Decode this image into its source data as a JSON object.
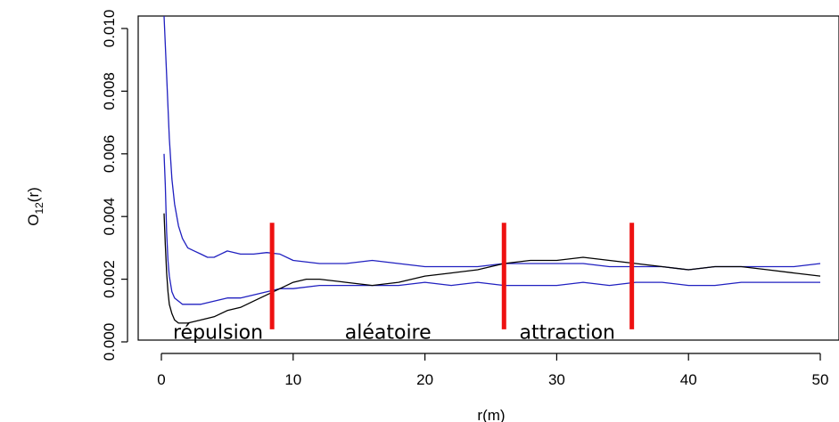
{
  "chart_data": {
    "type": "line",
    "title": "",
    "xlabel": "r(m)",
    "ylabel_main": "O",
    "ylabel_sub": "12",
    "ylabel_tail": "(r)",
    "xlim": [
      0,
      50
    ],
    "ylim": [
      0,
      0.01
    ],
    "xticks": [
      0,
      10,
      20,
      30,
      40,
      50
    ],
    "xtick_labels": [
      "0",
      "10",
      "20",
      "30",
      "40",
      "50"
    ],
    "yticks": [
      0.0,
      0.002,
      0.004,
      0.006,
      0.008,
      0.01
    ],
    "ytick_labels": [
      "0.000",
      "0.002",
      "0.004",
      "0.006",
      "0.008",
      "0.010"
    ],
    "grid": false,
    "series": [
      {
        "color": "#2020c0",
        "x": [
          0.2,
          0.4,
          0.6,
          0.8,
          1.0,
          1.3,
          1.6,
          2.0,
          2.5,
          3.0,
          3.5,
          4.0,
          4.5,
          5.0,
          6.0,
          7.0,
          8.0,
          9.0,
          10.0,
          12.0,
          14.0,
          16.0,
          18.0,
          20.0,
          22.0,
          24.0,
          26.0,
          28.0,
          30.0,
          32.0,
          34.0,
          36.0,
          38.0,
          40.0,
          42.0,
          44.0,
          46.0,
          48.0,
          50.0
        ],
        "y": [
          0.0105,
          0.0085,
          0.0065,
          0.0052,
          0.0044,
          0.0037,
          0.0033,
          0.003,
          0.0029,
          0.0028,
          0.0027,
          0.0027,
          0.0028,
          0.0029,
          0.0028,
          0.0028,
          0.00285,
          0.0028,
          0.0026,
          0.0025,
          0.0025,
          0.0026,
          0.0025,
          0.0024,
          0.0024,
          0.0024,
          0.0025,
          0.0025,
          0.0025,
          0.0025,
          0.0024,
          0.0024,
          0.0024,
          0.0023,
          0.0024,
          0.0024,
          0.0024,
          0.0024,
          0.0025
        ]
      },
      {
        "color": "#2020c0",
        "x": [
          0.2,
          0.3,
          0.4,
          0.5,
          0.6,
          0.8,
          1.0,
          1.3,
          1.6,
          2.0,
          3.0,
          4.0,
          5.0,
          6.0,
          7.0,
          8.0,
          9.0,
          10.0,
          12.0,
          14.0,
          16.0,
          18.0,
          20.0,
          22.0,
          24.0,
          26.0,
          28.0,
          30.0,
          32.0,
          34.0,
          36.0,
          38.0,
          40.0,
          42.0,
          44.0,
          46.0,
          48.0,
          50.0
        ],
        "y": [
          0.006,
          0.005,
          0.0035,
          0.0026,
          0.0021,
          0.0016,
          0.0014,
          0.0013,
          0.0012,
          0.0012,
          0.0012,
          0.0013,
          0.0014,
          0.0014,
          0.0015,
          0.0016,
          0.0017,
          0.0017,
          0.0018,
          0.0018,
          0.0018,
          0.0018,
          0.0019,
          0.0018,
          0.0019,
          0.0018,
          0.0018,
          0.0018,
          0.0019,
          0.0018,
          0.0019,
          0.0019,
          0.0018,
          0.0018,
          0.0019,
          0.0019,
          0.0019,
          0.0019
        ]
      },
      {
        "color": "#000000",
        "x": [
          0.2,
          0.3,
          0.4,
          0.5,
          0.6,
          0.8,
          1.0,
          1.3,
          1.6,
          2.0,
          3.0,
          4.0,
          5.0,
          6.0,
          7.0,
          8.0,
          9.0,
          10.0,
          11.0,
          12.0,
          14.0,
          16.0,
          18.0,
          20.0,
          22.0,
          24.0,
          26.0,
          28.0,
          30.0,
          32.0,
          34.0,
          36.0,
          38.0,
          40.0,
          42.0,
          44.0,
          46.0,
          48.0,
          50.0
        ],
        "y": [
          0.0041,
          0.0031,
          0.0022,
          0.0016,
          0.0012,
          0.0009,
          0.0007,
          0.0006,
          0.0006,
          0.0006,
          0.0007,
          0.0008,
          0.001,
          0.0011,
          0.0013,
          0.0015,
          0.0017,
          0.0019,
          0.002,
          0.002,
          0.0019,
          0.0018,
          0.0019,
          0.0021,
          0.0022,
          0.0023,
          0.0025,
          0.0026,
          0.0026,
          0.0027,
          0.0026,
          0.0025,
          0.0024,
          0.0023,
          0.0024,
          0.0024,
          0.0023,
          0.0022,
          0.0021
        ]
      }
    ],
    "vertical_markers": {
      "color": "#ee1111",
      "x": [
        8.4,
        26.0,
        35.7
      ],
      "y_range": [
        0.0004,
        0.0038
      ]
    },
    "annotations": [
      {
        "text": "répulsion",
        "x": 4.3,
        "y": 0.0001
      },
      {
        "text": "aléatoire",
        "x": 17.2,
        "y": 0.0001
      },
      {
        "text": "attraction",
        "x": 30.8,
        "y": 0.0001
      }
    ]
  }
}
